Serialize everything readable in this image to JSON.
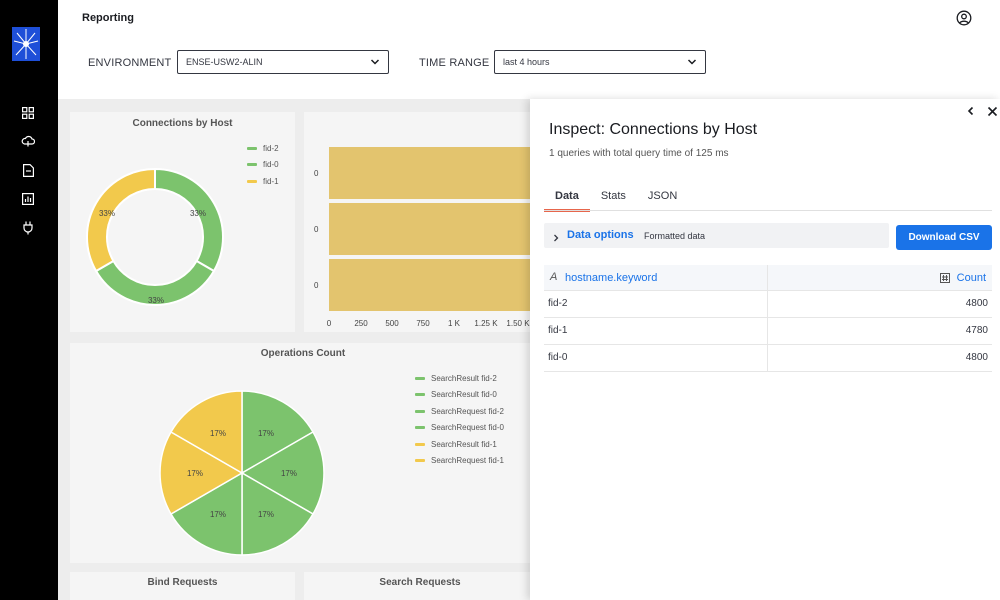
{
  "header": {
    "title": "Reporting"
  },
  "filters": {
    "environment_label": "ENVIRONMENT",
    "environment_value": "ENSE-USW2-ALIN",
    "time_range_label": "TIME RANGE",
    "time_range_value": "last 4 hours"
  },
  "sidebar": {
    "icons": [
      "dashboard-icon",
      "cloud-icon",
      "document-icon",
      "report-icon",
      "plug-icon"
    ]
  },
  "panels": {
    "connections": {
      "title": "Connections by Host",
      "legend": [
        {
          "label": "fid-2",
          "color": "#54b399"
        },
        {
          "label": "fid-0",
          "color": "#7cc36d"
        },
        {
          "label": "fid-1",
          "color": "#f2c94c"
        }
      ],
      "slice_labels": [
        "33%",
        "33%",
        "33%"
      ]
    },
    "bar_panel": {
      "y_labels": [
        "0",
        "0",
        "0"
      ],
      "x_ticks": [
        "0",
        "250",
        "500",
        "750",
        "1 K",
        "1.25 K",
        "1.50 K"
      ]
    },
    "operations": {
      "title": "Operations Count",
      "legend": [
        {
          "label": "SearchResult fid-2",
          "color": "#7cc36d"
        },
        {
          "label": "SearchResult fid-0",
          "color": "#7cc36d"
        },
        {
          "label": "SearchRequest fid-2",
          "color": "#7cc36d"
        },
        {
          "label": "SearchRequest fid-0",
          "color": "#7cc36d"
        },
        {
          "label": "SearchResult fid-1",
          "color": "#f2c94c"
        },
        {
          "label": "SearchRequest fid-1",
          "color": "#f2c94c"
        }
      ],
      "slice_labels": [
        "17%",
        "17%",
        "17%",
        "17%",
        "17%",
        "17%"
      ]
    },
    "bind_requests": {
      "title": "Bind Requests"
    },
    "search_requests": {
      "title": "Search Requests"
    }
  },
  "inspect": {
    "title": "Inspect: Connections by Host",
    "subtitle": "1 queries with total query time of 125 ms",
    "tabs": [
      "Data",
      "Stats",
      "JSON"
    ],
    "data_options_label": "Data options",
    "data_options_value": "Formatted data",
    "download_label": "Download CSV",
    "columns": [
      "hostname.keyword",
      "Count"
    ],
    "rows": [
      {
        "host": "fid-2",
        "count": "4800"
      },
      {
        "host": "fid-1",
        "count": "4780"
      },
      {
        "host": "fid-0",
        "count": "4800"
      }
    ]
  },
  "colors": {
    "green": "#7cc36d",
    "yellow": "#f2c94c",
    "bar": "#e3c46e",
    "accent_blue": "#1a73e8",
    "tab_underline": "#e7664c"
  }
}
